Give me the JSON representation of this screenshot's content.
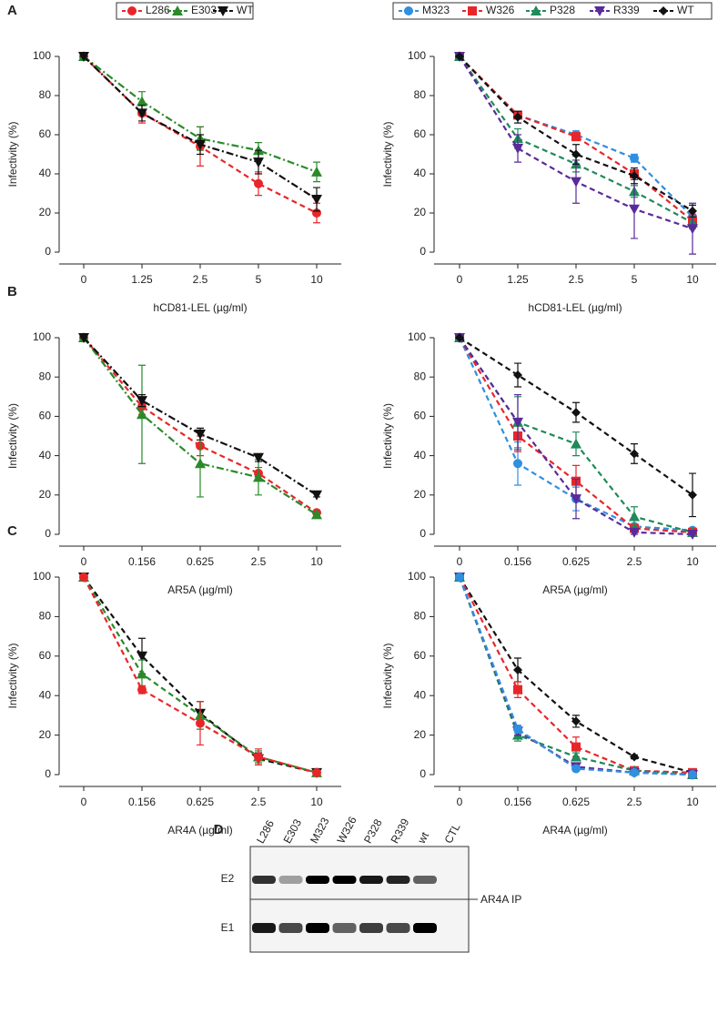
{
  "chart_data": [
    {
      "type": "line",
      "panel_label": "A",
      "ylabel": "Infectivity (%)",
      "xlabel": "hCD81-LEL (µg/ml)",
      "categories": [
        "0",
        "1.25",
        "2.5",
        "5",
        "10"
      ],
      "ylim": [
        0,
        100
      ],
      "yticks": [
        0,
        20,
        40,
        60,
        80,
        100
      ],
      "series": [
        {
          "name": "L286",
          "color": "#e8262a",
          "marker": "circle",
          "dash": "6,4",
          "values": [
            100,
            71,
            54,
            35,
            20
          ],
          "errors": [
            0,
            5,
            10,
            6,
            5
          ]
        },
        {
          "name": "E303",
          "color": "#2a8a2a",
          "marker": "triangle",
          "dash": "8,3,2,3",
          "values": [
            100,
            77,
            58,
            52,
            41
          ],
          "errors": [
            0,
            5,
            6,
            4,
            5
          ]
        },
        {
          "name": "WT",
          "color": "#111111",
          "marker": "triangle-down",
          "dash": "8,3,2,3",
          "values": [
            100,
            71,
            55,
            46,
            27
          ],
          "errors": [
            0,
            4,
            5,
            6,
            6
          ]
        }
      ]
    },
    {
      "type": "line",
      "ylabel": "Infectivity (%)",
      "xlabel": "hCD81-LEL (µg/ml)",
      "categories": [
        "0",
        "1.25",
        "2.5",
        "5",
        "10"
      ],
      "ylim": [
        0,
        100
      ],
      "yticks": [
        0,
        20,
        40,
        60,
        80,
        100
      ],
      "series": [
        {
          "name": "M323",
          "color": "#2f8fe0",
          "marker": "circle",
          "dash": "6,4",
          "values": [
            100,
            70,
            60,
            48,
            18
          ],
          "errors": [
            0,
            2,
            2,
            2,
            3
          ]
        },
        {
          "name": "W326",
          "color": "#e8262a",
          "marker": "square",
          "dash": "6,4",
          "values": [
            100,
            70,
            59,
            40,
            16
          ],
          "errors": [
            0,
            2,
            2,
            3,
            3
          ]
        },
        {
          "name": "P328",
          "color": "#1f8a5a",
          "marker": "triangle",
          "dash": "6,4",
          "values": [
            100,
            58,
            45,
            31,
            15
          ],
          "errors": [
            0,
            5,
            4,
            3,
            3
          ]
        },
        {
          "name": "R339",
          "color": "#5a2a9a",
          "marker": "triangle-down",
          "dash": "6,4",
          "values": [
            100,
            53,
            36,
            22,
            12
          ],
          "errors": [
            0,
            7,
            11,
            15,
            13
          ]
        },
        {
          "name": "WT",
          "color": "#111111",
          "marker": "diamond",
          "dash": "6,4",
          "values": [
            100,
            69,
            50,
            39,
            21
          ],
          "errors": [
            0,
            3,
            5,
            4,
            3
          ]
        }
      ]
    },
    {
      "type": "line",
      "panel_label": "B",
      "ylabel": "Infectivity (%)",
      "xlabel": "AR5A (µg/ml)",
      "categories": [
        "0",
        "0.156",
        "0.625",
        "2.5",
        "10"
      ],
      "ylim": [
        0,
        100
      ],
      "yticks": [
        0,
        20,
        40,
        60,
        80,
        100
      ],
      "series": [
        {
          "color": "#e8262a",
          "marker": "circle",
          "dash": "6,4",
          "values": [
            100,
            65,
            45,
            31,
            11
          ],
          "errors": [
            0,
            4,
            5,
            3,
            1
          ]
        },
        {
          "color": "#2a8a2a",
          "marker": "triangle",
          "dash": "8,3,2,3",
          "values": [
            100,
            61,
            36,
            29,
            10
          ],
          "errors": [
            0,
            25,
            17,
            9,
            1
          ]
        },
        {
          "color": "#111111",
          "marker": "triangle-down",
          "dash": "8,3,2,3",
          "values": [
            100,
            68,
            51,
            39,
            20
          ],
          "errors": [
            0,
            3,
            3,
            2,
            1
          ]
        }
      ]
    },
    {
      "type": "line",
      "ylabel": "Infectivity (%)",
      "xlabel": "AR5A (µg/ml)",
      "categories": [
        "0",
        "0.156",
        "0.625",
        "2.5",
        "10"
      ],
      "ylim": [
        0,
        100
      ],
      "yticks": [
        0,
        20,
        40,
        60,
        80,
        100
      ],
      "series": [
        {
          "color": "#2f8fe0",
          "marker": "circle",
          "dash": "6,4",
          "values": [
            100,
            36,
            18,
            4,
            2
          ],
          "errors": [
            0,
            11,
            6,
            1,
            1
          ]
        },
        {
          "color": "#e8262a",
          "marker": "square",
          "dash": "6,4",
          "values": [
            100,
            50,
            27,
            3,
            1
          ],
          "errors": [
            0,
            8,
            8,
            2,
            1
          ]
        },
        {
          "color": "#1f8a5a",
          "marker": "triangle",
          "dash": "6,4",
          "values": [
            100,
            57,
            46,
            9,
            1
          ],
          "errors": [
            0,
            13,
            6,
            5,
            1
          ]
        },
        {
          "color": "#5a2a9a",
          "marker": "triangle-down",
          "dash": "6,4",
          "values": [
            100,
            57,
            18,
            1,
            0
          ],
          "errors": [
            0,
            14,
            10,
            1,
            0
          ]
        },
        {
          "color": "#111111",
          "marker": "diamond",
          "dash": "6,4",
          "values": [
            100,
            81,
            62,
            41,
            20
          ],
          "errors": [
            0,
            6,
            5,
            5,
            11
          ]
        }
      ]
    },
    {
      "type": "line",
      "panel_label": "C",
      "ylabel": "Infectivity (%)",
      "xlabel": "AR4A (µg/ml)",
      "categories": [
        "0",
        "0.156",
        "0.625",
        "2.5",
        "10"
      ],
      "ylim": [
        0,
        100
      ],
      "yticks": [
        0,
        20,
        40,
        60,
        80,
        100
      ],
      "series": [
        {
          "color": "#111111",
          "marker": "triangle-down",
          "dash": "6,4",
          "values": [
            100,
            60,
            31,
            8,
            1
          ],
          "errors": [
            0,
            9,
            6,
            3,
            1
          ]
        },
        {
          "color": "#2a8a2a",
          "marker": "triangle",
          "dash": "6,4",
          "values": [
            100,
            51,
            30,
            9,
            1
          ],
          "errors": [
            0,
            7,
            7,
            3,
            1
          ]
        },
        {
          "color": "#e8262a",
          "marker": "circle",
          "dash": "6,4",
          "values": [
            100,
            43,
            26,
            9,
            1
          ],
          "errors": [
            0,
            2,
            11,
            4,
            1
          ]
        }
      ]
    },
    {
      "type": "line",
      "ylabel": "Infectivity (%)",
      "xlabel": "AR4A (µg/ml)",
      "categories": [
        "0",
        "0.156",
        "0.625",
        "2.5",
        "10"
      ],
      "ylim": [
        0,
        100
      ],
      "yticks": [
        0,
        20,
        40,
        60,
        80,
        100
      ],
      "series": [
        {
          "color": "#111111",
          "marker": "diamond",
          "dash": "6,4",
          "values": [
            100,
            53,
            27,
            9,
            1
          ],
          "errors": [
            0,
            6,
            3,
            1,
            1
          ]
        },
        {
          "color": "#e8262a",
          "marker": "square",
          "dash": "6,4",
          "values": [
            100,
            43,
            14,
            2,
            1
          ],
          "errors": [
            0,
            4,
            5,
            1,
            0
          ]
        },
        {
          "color": "#1f8a5a",
          "marker": "triangle",
          "dash": "6,4",
          "values": [
            100,
            20,
            9,
            2,
            0
          ],
          "errors": [
            0,
            3,
            2,
            1,
            0
          ]
        },
        {
          "color": "#5a2a9a",
          "marker": "triangle-down",
          "dash": "6,4",
          "values": [
            100,
            22,
            4,
            1,
            0
          ],
          "errors": [
            0,
            2,
            1,
            0,
            0
          ]
        },
        {
          "color": "#2f8fe0",
          "marker": "circle",
          "dash": "6,4",
          "values": [
            100,
            23,
            3,
            1,
            0
          ],
          "errors": [
            0,
            2,
            1,
            0,
            0
          ]
        }
      ]
    }
  ],
  "blot": {
    "panel_label": "D",
    "lanes": [
      "L286",
      "E303",
      "M323",
      "W326",
      "P328",
      "R339",
      "wt",
      "CTL"
    ],
    "rows": [
      "E2",
      "E1"
    ],
    "annotation": "AR4A IP"
  }
}
